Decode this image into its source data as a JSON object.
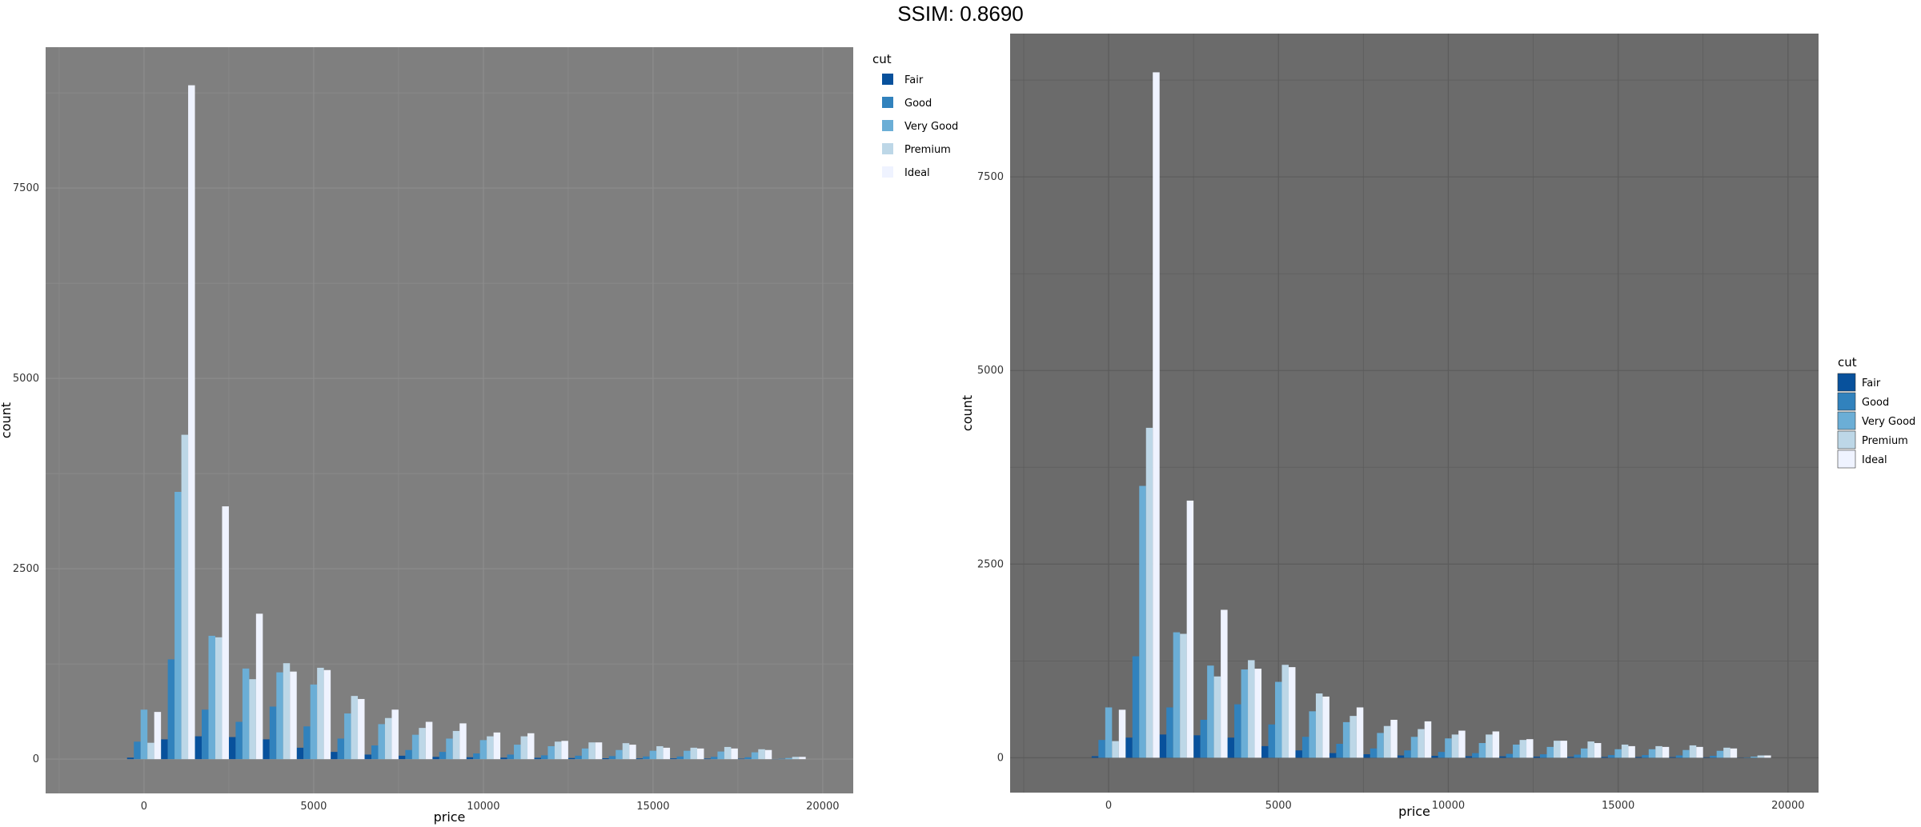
{
  "title": "SSIM: 0.8690",
  "colors": {
    "panel_left": "#7f7f7f",
    "panel_right": "#6b6b6b",
    "grid_left": "#8c8c8c",
    "grid_right": "#5c5c5c",
    "series": [
      "#08519c",
      "#3182bd",
      "#6baed6",
      "#bdd7e7",
      "#eff3ff"
    ]
  },
  "chart_data": [
    {
      "type": "bar",
      "xlabel": "price",
      "ylabel": "count",
      "xlim": [
        -2900,
        20900
      ],
      "ylim": [
        -450,
        9350
      ],
      "x_ticks": [
        0,
        5000,
        10000,
        15000,
        20000
      ],
      "y_ticks": [
        0,
        2500,
        5000,
        7500
      ],
      "grid": true,
      "legend_title": "cut",
      "legend_position": "top-right",
      "categories": [
        0,
        1000,
        2000,
        3000,
        4000,
        5000,
        6000,
        7000,
        8000,
        9000,
        10000,
        11000,
        12000,
        13000,
        14000,
        15000,
        16000,
        17000,
        18000,
        19000
      ],
      "series": [
        {
          "name": "Fair",
          "values": [
            20,
            260,
            300,
            290,
            260,
            150,
            95,
            60,
            45,
            30,
            25,
            20,
            18,
            15,
            12,
            10,
            10,
            8,
            6,
            2
          ]
        },
        {
          "name": "Good",
          "values": [
            230,
            1310,
            650,
            490,
            690,
            430,
            270,
            180,
            120,
            95,
            75,
            60,
            50,
            45,
            40,
            35,
            35,
            30,
            25,
            5
          ]
        },
        {
          "name": "Very Good",
          "values": [
            650,
            3510,
            1620,
            1190,
            1140,
            980,
            600,
            460,
            320,
            270,
            250,
            190,
            170,
            140,
            120,
            110,
            110,
            100,
            90,
            15
          ]
        },
        {
          "name": "Premium",
          "values": [
            215,
            4260,
            1600,
            1050,
            1260,
            1200,
            830,
            540,
            410,
            370,
            300,
            300,
            230,
            220,
            210,
            170,
            150,
            160,
            130,
            30
          ]
        },
        {
          "name": "Ideal",
          "values": [
            620,
            8850,
            3320,
            1910,
            1150,
            1170,
            790,
            650,
            490,
            470,
            350,
            340,
            240,
            220,
            190,
            150,
            140,
            140,
            120,
            30
          ]
        }
      ]
    },
    {
      "type": "bar",
      "xlabel": "price",
      "ylabel": "count",
      "xlim": [
        -2900,
        20900
      ],
      "ylim": [
        -450,
        9350
      ],
      "x_ticks": [
        0,
        5000,
        10000,
        15000,
        20000
      ],
      "y_ticks": [
        0,
        2500,
        5000,
        7500
      ],
      "grid": true,
      "legend_title": "cut",
      "legend_position": "right",
      "categories": [
        0,
        1000,
        2000,
        3000,
        4000,
        5000,
        6000,
        7000,
        8000,
        9000,
        10000,
        11000,
        12000,
        13000,
        14000,
        15000,
        16000,
        17000,
        18000,
        19000
      ],
      "series": [
        {
          "name": "Fair",
          "values": [
            20,
            260,
            300,
            290,
            260,
            150,
            95,
            60,
            45,
            30,
            25,
            20,
            18,
            15,
            12,
            10,
            10,
            8,
            6,
            2
          ]
        },
        {
          "name": "Good",
          "values": [
            230,
            1310,
            650,
            490,
            690,
            430,
            270,
            180,
            120,
            95,
            75,
            60,
            50,
            45,
            40,
            35,
            35,
            30,
            25,
            5
          ]
        },
        {
          "name": "Very Good",
          "values": [
            650,
            3510,
            1620,
            1190,
            1140,
            980,
            600,
            460,
            320,
            270,
            250,
            190,
            170,
            140,
            120,
            110,
            110,
            100,
            90,
            15
          ]
        },
        {
          "name": "Premium",
          "values": [
            215,
            4260,
            1600,
            1050,
            1260,
            1200,
            830,
            540,
            410,
            370,
            300,
            300,
            230,
            220,
            210,
            170,
            150,
            160,
            130,
            30
          ]
        },
        {
          "name": "Ideal",
          "values": [
            620,
            8850,
            3320,
            1910,
            1150,
            1170,
            790,
            650,
            490,
            470,
            350,
            340,
            240,
            220,
            190,
            150,
            140,
            140,
            120,
            30
          ]
        }
      ]
    }
  ]
}
